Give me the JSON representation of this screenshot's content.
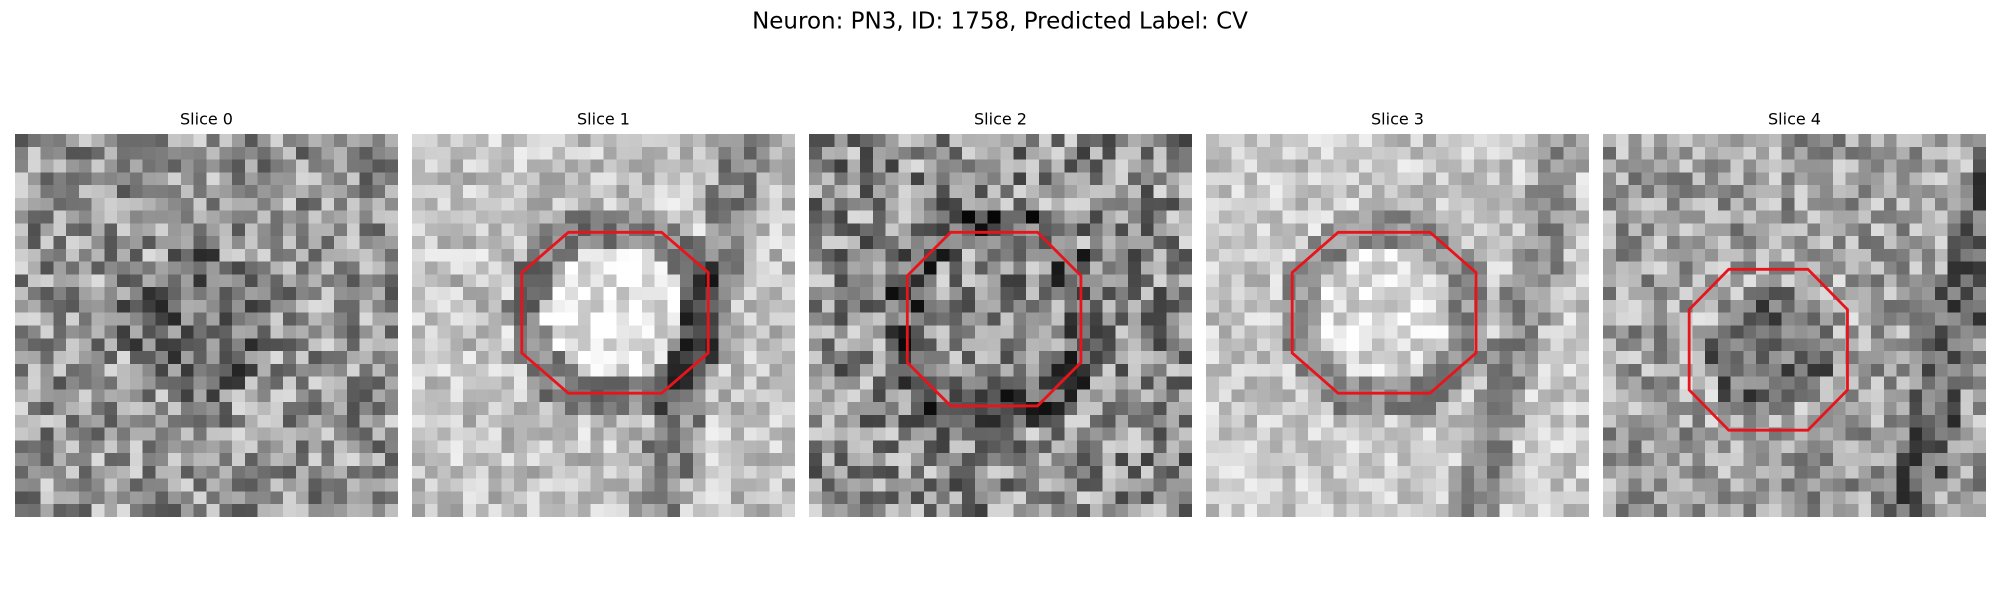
{
  "title": "Neuron: PN3, ID: 1758, Predicted Label: CV",
  "panels": [
    {
      "title": "Slice 0"
    },
    {
      "title": "Slice 1"
    },
    {
      "title": "Slice 2"
    },
    {
      "title": "Slice 3"
    },
    {
      "title": "Slice 4"
    }
  ]
}
